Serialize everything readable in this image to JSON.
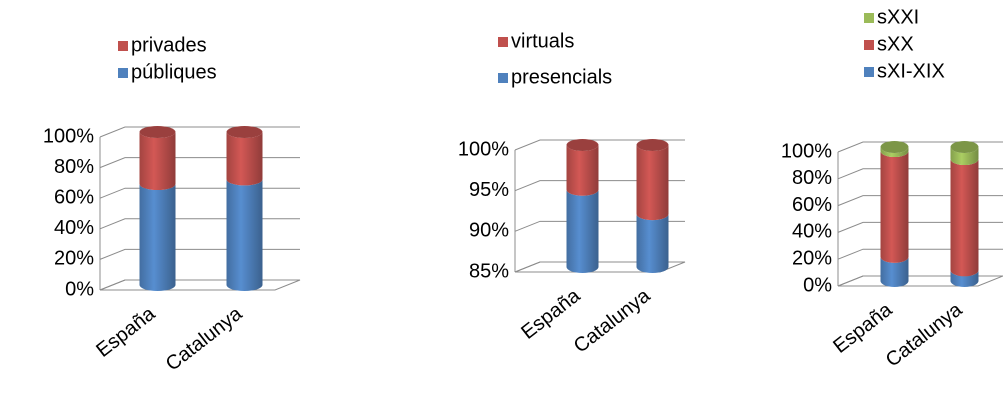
{
  "chart_data": [
    {
      "type": "bar3d-stacked",
      "categories": [
        "España",
        "Catalunya"
      ],
      "series": [
        {
          "name": "públiques",
          "color": "#4f81bd",
          "values": [
            66,
            69
          ]
        },
        {
          "name": "privades",
          "color": "#c0504d",
          "values": [
            34,
            31
          ]
        }
      ],
      "ylim": [
        0,
        100
      ],
      "yticks": [
        {
          "value": 0,
          "label": "0%"
        },
        {
          "value": 20,
          "label": "20%"
        },
        {
          "value": 40,
          "label": "40%"
        },
        {
          "value": 60,
          "label": "60%"
        },
        {
          "value": 80,
          "label": "80%"
        },
        {
          "value": 100,
          "label": "100%"
        }
      ],
      "grid": true
    },
    {
      "type": "bar3d-stacked",
      "categories": [
        "España",
        "Catalunya"
      ],
      "series": [
        {
          "name": "presencials",
          "color": "#4f81bd",
          "values": [
            94.5,
            91.5
          ]
        },
        {
          "name": "virtuals",
          "color": "#c0504d",
          "values": [
            5.5,
            8.5
          ]
        }
      ],
      "ylim": [
        85,
        100
      ],
      "yticks": [
        {
          "value": 85,
          "label": "85%"
        },
        {
          "value": 90,
          "label": "90%"
        },
        {
          "value": 95,
          "label": "95%"
        },
        {
          "value": 100,
          "label": "100%"
        }
      ],
      "grid": true
    },
    {
      "type": "bar3d-stacked",
      "categories": [
        "España",
        "Catalunya"
      ],
      "series": [
        {
          "name": "sXI-XIX",
          "color": "#4f81bd",
          "values": [
            18,
            8
          ]
        },
        {
          "name": "sXX",
          "color": "#c0504d",
          "values": [
            79,
            83
          ]
        },
        {
          "name": "sXXI",
          "color": "#9bbb59",
          "values": [
            3,
            9
          ]
        }
      ],
      "ylim": [
        0,
        100
      ],
      "yticks": [
        {
          "value": 0,
          "label": "0%"
        },
        {
          "value": 20,
          "label": "20%"
        },
        {
          "value": 40,
          "label": "40%"
        },
        {
          "value": 60,
          "label": "60%"
        },
        {
          "value": 80,
          "label": "80%"
        },
        {
          "value": 100,
          "label": "100%"
        }
      ],
      "grid": true
    }
  ]
}
